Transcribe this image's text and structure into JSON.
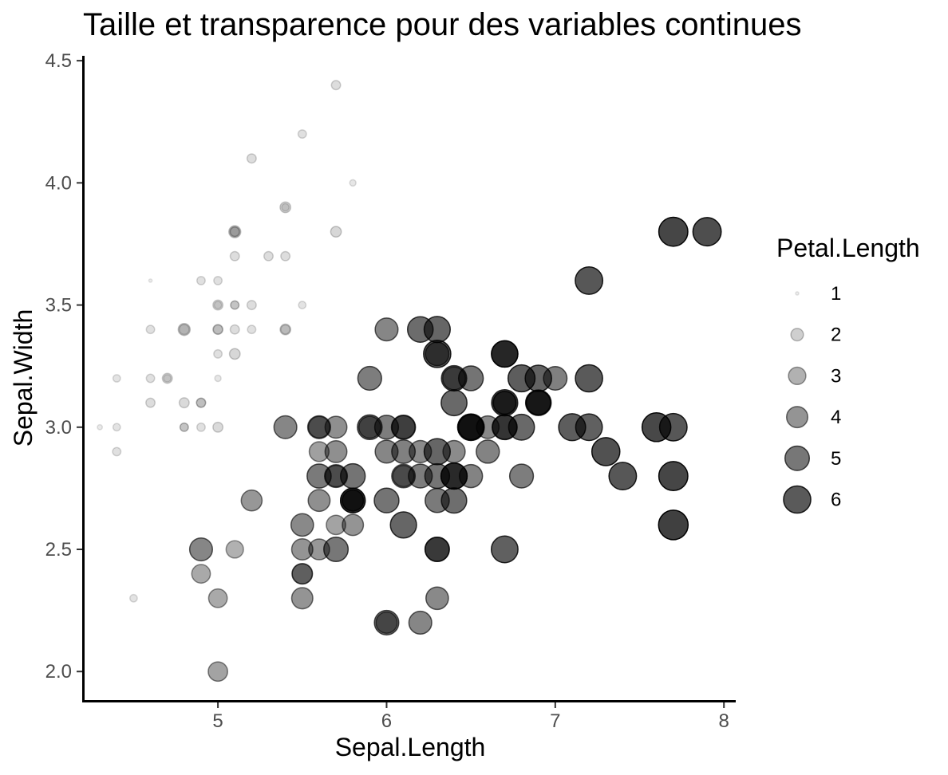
{
  "chart_data": {
    "type": "scatter",
    "title": "Taille et transparence pour des variables continues",
    "xlabel": "Sepal.Length",
    "ylabel": "Sepal.Width",
    "xlim": [
      4.2,
      8.07
    ],
    "ylim": [
      1.88,
      4.52
    ],
    "x_ticks": [
      5,
      6,
      7,
      8
    ],
    "x_tick_labels": [
      "5",
      "6",
      "7",
      "8"
    ],
    "y_ticks": [
      2.0,
      2.5,
      3.0,
      3.5,
      4.0,
      4.5
    ],
    "y_tick_labels": [
      "2.0",
      "2.5",
      "3.0",
      "3.5",
      "4.0",
      "4.5"
    ],
    "size_and_alpha_variable": "Petal.Length",
    "petal_length_range": [
      1.0,
      6.9
    ],
    "grid": false,
    "legend": {
      "title": "Petal.Length",
      "placement": "right",
      "entries": [
        {
          "label": "1",
          "value": 1
        },
        {
          "label": "2",
          "value": 2
        },
        {
          "label": "3",
          "value": 3
        },
        {
          "label": "4",
          "value": 4
        },
        {
          "label": "5",
          "value": 5
        },
        {
          "label": "6",
          "value": 6
        }
      ]
    },
    "points": [
      [
        5.1,
        3.5,
        1.4
      ],
      [
        4.9,
        3.0,
        1.4
      ],
      [
        4.7,
        3.2,
        1.3
      ],
      [
        4.6,
        3.1,
        1.5
      ],
      [
        5.0,
        3.6,
        1.4
      ],
      [
        5.4,
        3.9,
        1.7
      ],
      [
        4.6,
        3.4,
        1.4
      ],
      [
        5.0,
        3.4,
        1.5
      ],
      [
        4.4,
        2.9,
        1.4
      ],
      [
        4.9,
        3.1,
        1.5
      ],
      [
        5.4,
        3.7,
        1.5
      ],
      [
        4.8,
        3.4,
        1.6
      ],
      [
        4.8,
        3.0,
        1.4
      ],
      [
        4.3,
        3.0,
        1.1
      ],
      [
        5.8,
        4.0,
        1.2
      ],
      [
        5.7,
        4.4,
        1.5
      ],
      [
        5.4,
        3.9,
        1.3
      ],
      [
        5.1,
        3.5,
        1.4
      ],
      [
        5.7,
        3.8,
        1.7
      ],
      [
        5.1,
        3.8,
        1.5
      ],
      [
        5.4,
        3.4,
        1.7
      ],
      [
        5.1,
        3.7,
        1.5
      ],
      [
        4.6,
        3.6,
        1.0
      ],
      [
        5.1,
        3.3,
        1.7
      ],
      [
        4.8,
        3.4,
        1.9
      ],
      [
        5.0,
        3.0,
        1.6
      ],
      [
        5.0,
        3.4,
        1.6
      ],
      [
        5.2,
        3.5,
        1.5
      ],
      [
        5.2,
        3.4,
        1.4
      ],
      [
        4.7,
        3.2,
        1.6
      ],
      [
        4.8,
        3.1,
        1.6
      ],
      [
        5.4,
        3.4,
        1.5
      ],
      [
        5.2,
        4.1,
        1.5
      ],
      [
        5.5,
        4.2,
        1.4
      ],
      [
        4.9,
        3.1,
        1.5
      ],
      [
        5.0,
        3.2,
        1.2
      ],
      [
        5.5,
        3.5,
        1.3
      ],
      [
        4.9,
        3.6,
        1.4
      ],
      [
        4.4,
        3.0,
        1.3
      ],
      [
        5.1,
        3.4,
        1.5
      ],
      [
        5.0,
        3.5,
        1.3
      ],
      [
        4.5,
        2.3,
        1.3
      ],
      [
        4.4,
        3.2,
        1.3
      ],
      [
        5.0,
        3.5,
        1.6
      ],
      [
        5.1,
        3.8,
        1.9
      ],
      [
        4.8,
        3.0,
        1.4
      ],
      [
        5.1,
        3.8,
        1.6
      ],
      [
        4.6,
        3.2,
        1.4
      ],
      [
        5.3,
        3.7,
        1.5
      ],
      [
        5.0,
        3.3,
        1.4
      ],
      [
        7.0,
        3.2,
        4.7
      ],
      [
        6.4,
        3.2,
        4.5
      ],
      [
        6.9,
        3.1,
        4.9
      ],
      [
        5.5,
        2.3,
        4.0
      ],
      [
        6.5,
        2.8,
        4.6
      ],
      [
        5.7,
        2.8,
        4.5
      ],
      [
        6.3,
        3.3,
        4.7
      ],
      [
        4.9,
        2.4,
        3.3
      ],
      [
        6.6,
        2.9,
        4.6
      ],
      [
        5.2,
        2.7,
        3.9
      ],
      [
        5.0,
        2.0,
        3.5
      ],
      [
        5.9,
        3.0,
        4.2
      ],
      [
        6.0,
        2.2,
        4.0
      ],
      [
        6.1,
        2.9,
        4.7
      ],
      [
        5.6,
        2.9,
        3.6
      ],
      [
        6.7,
        3.1,
        4.4
      ],
      [
        5.6,
        3.0,
        4.5
      ],
      [
        5.8,
        2.7,
        4.1
      ],
      [
        6.2,
        2.2,
        4.5
      ],
      [
        5.6,
        2.5,
        3.9
      ],
      [
        5.9,
        3.2,
        4.8
      ],
      [
        6.1,
        2.8,
        4.0
      ],
      [
        6.3,
        2.5,
        4.9
      ],
      [
        6.1,
        2.8,
        4.7
      ],
      [
        6.4,
        2.9,
        4.3
      ],
      [
        6.6,
        3.0,
        4.4
      ],
      [
        6.8,
        2.8,
        4.8
      ],
      [
        6.7,
        3.0,
        5.0
      ],
      [
        6.0,
        2.9,
        4.5
      ],
      [
        5.7,
        2.6,
        3.5
      ],
      [
        5.5,
        2.4,
        3.8
      ],
      [
        5.5,
        2.4,
        3.7
      ],
      [
        5.8,
        2.7,
        3.9
      ],
      [
        6.0,
        2.7,
        5.1
      ],
      [
        5.4,
        3.0,
        4.5
      ],
      [
        6.0,
        3.4,
        4.5
      ],
      [
        6.7,
        3.1,
        4.7
      ],
      [
        6.3,
        2.3,
        4.4
      ],
      [
        5.6,
        3.0,
        4.1
      ],
      [
        5.5,
        2.5,
        4.0
      ],
      [
        5.5,
        2.6,
        4.4
      ],
      [
        6.1,
        3.0,
        4.6
      ],
      [
        5.8,
        2.6,
        4.0
      ],
      [
        5.0,
        2.3,
        3.3
      ],
      [
        5.6,
        2.7,
        4.2
      ],
      [
        5.7,
        3.0,
        4.2
      ],
      [
        5.7,
        2.9,
        4.2
      ],
      [
        6.2,
        2.9,
        4.3
      ],
      [
        5.1,
        2.5,
        3.0
      ],
      [
        5.7,
        2.8,
        4.1
      ],
      [
        6.3,
        3.3,
        6.0
      ],
      [
        5.8,
        2.7,
        5.1
      ],
      [
        7.1,
        3.0,
        5.9
      ],
      [
        6.3,
        2.9,
        5.6
      ],
      [
        6.5,
        3.0,
        5.8
      ],
      [
        7.6,
        3.0,
        6.6
      ],
      [
        4.9,
        2.5,
        4.5
      ],
      [
        7.3,
        2.9,
        6.3
      ],
      [
        6.7,
        2.5,
        5.8
      ],
      [
        7.2,
        3.6,
        6.1
      ],
      [
        6.5,
        3.2,
        5.1
      ],
      [
        6.4,
        2.7,
        5.3
      ],
      [
        6.8,
        3.0,
        5.5
      ],
      [
        5.7,
        2.5,
        5.0
      ],
      [
        5.8,
        2.8,
        5.1
      ],
      [
        6.4,
        3.2,
        5.3
      ],
      [
        6.5,
        3.0,
        5.5
      ],
      [
        7.7,
        3.8,
        6.7
      ],
      [
        7.7,
        2.6,
        6.9
      ],
      [
        6.0,
        2.2,
        5.0
      ],
      [
        6.9,
        3.2,
        5.7
      ],
      [
        5.6,
        2.8,
        4.9
      ],
      [
        7.7,
        2.8,
        6.7
      ],
      [
        6.3,
        2.7,
        4.9
      ],
      [
        6.7,
        3.3,
        5.7
      ],
      [
        7.2,
        3.2,
        6.0
      ],
      [
        6.2,
        2.8,
        4.8
      ],
      [
        6.1,
        3.0,
        4.9
      ],
      [
        6.4,
        2.8,
        5.6
      ],
      [
        7.2,
        3.0,
        5.8
      ],
      [
        7.4,
        2.8,
        6.1
      ],
      [
        7.9,
        3.8,
        6.4
      ],
      [
        6.4,
        2.8,
        5.6
      ],
      [
        6.3,
        2.8,
        5.1
      ],
      [
        6.1,
        2.6,
        5.6
      ],
      [
        7.7,
        3.0,
        6.1
      ],
      [
        6.3,
        3.4,
        5.6
      ],
      [
        6.4,
        3.1,
        5.5
      ],
      [
        6.0,
        3.0,
        4.8
      ],
      [
        6.9,
        3.1,
        5.4
      ],
      [
        6.7,
        3.1,
        5.6
      ],
      [
        6.9,
        3.1,
        5.1
      ],
      [
        5.8,
        2.7,
        5.1
      ],
      [
        6.8,
        3.2,
        5.9
      ],
      [
        6.7,
        3.3,
        5.7
      ],
      [
        6.7,
        3.0,
        5.2
      ],
      [
        6.3,
        2.5,
        5.0
      ],
      [
        6.5,
        3.0,
        5.2
      ],
      [
        6.2,
        3.4,
        5.4
      ],
      [
        5.9,
        3.0,
        5.1
      ]
    ]
  }
}
